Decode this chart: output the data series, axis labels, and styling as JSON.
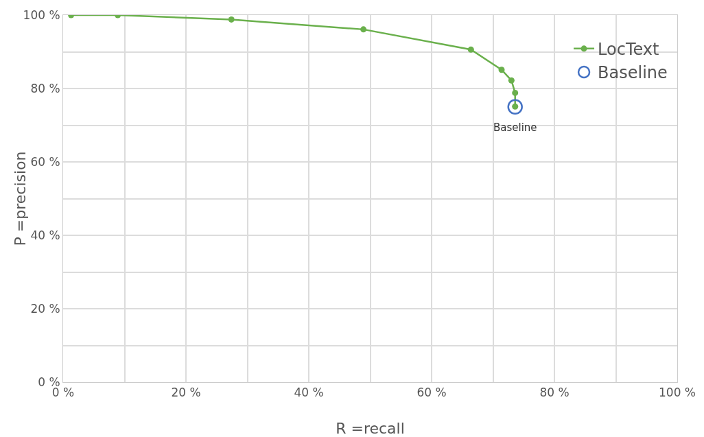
{
  "chart_data": {
    "type": "line",
    "xlabel": "R =recall",
    "ylabel": "P =precision",
    "xlim": [
      0,
      100
    ],
    "ylim": [
      0,
      100
    ],
    "xticks": [
      {
        "value": 0,
        "label": "0 %"
      },
      {
        "value": 10,
        "label": null
      },
      {
        "value": 20,
        "label": "20 %"
      },
      {
        "value": 30,
        "label": null
      },
      {
        "value": 40,
        "label": "40 %"
      },
      {
        "value": 50,
        "label": null
      },
      {
        "value": 60,
        "label": "60 %"
      },
      {
        "value": 70,
        "label": null
      },
      {
        "value": 80,
        "label": "80 %"
      },
      {
        "value": 90,
        "label": null
      },
      {
        "value": 100,
        "label": "100 %"
      }
    ],
    "yticks": [
      {
        "value": 0,
        "label": "0 %"
      },
      {
        "value": 10,
        "label": null
      },
      {
        "value": 20,
        "label": "20 %"
      },
      {
        "value": 30,
        "label": null
      },
      {
        "value": 40,
        "label": "40 %"
      },
      {
        "value": 50,
        "label": null
      },
      {
        "value": 60,
        "label": "60 %"
      },
      {
        "value": 70,
        "label": null
      },
      {
        "value": 80,
        "label": "80 %"
      },
      {
        "value": 90,
        "label": null
      },
      {
        "value": 100,
        "label": "100 %"
      }
    ],
    "grid": true,
    "legend": "top right",
    "marker": "circle",
    "line_style": "solid",
    "series": [
      {
        "name": "LocText",
        "color": "#6ab04c",
        "x": [
          1.3,
          8.9,
          27.4,
          48.9,
          66.4,
          71.4,
          73.0,
          73.6,
          73.6
        ],
        "values": [
          100,
          100,
          98.8,
          96.1,
          90.6,
          85.1,
          82.2,
          78.8,
          75.1
        ]
      },
      {
        "name": "Baseline",
        "type": "scatter",
        "color": "#4472c4",
        "x": [
          73.6
        ],
        "values": [
          75
        ]
      }
    ],
    "annotations": [
      {
        "text": "Baseline",
        "x": 73.6,
        "y": 75
      }
    ]
  }
}
